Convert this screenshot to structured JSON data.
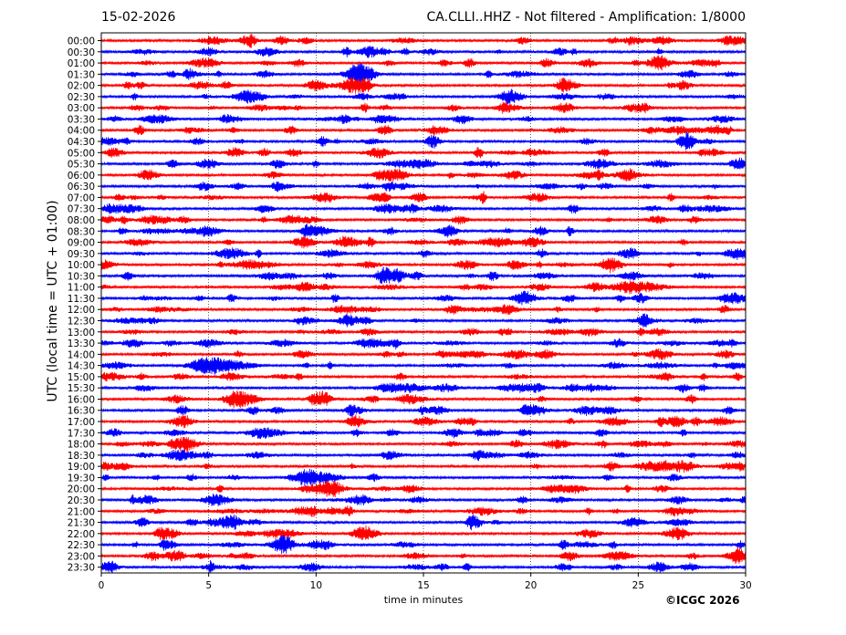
{
  "header": {
    "date": "15-02-2026",
    "title": "CA.CLLI..HHZ - Not filtered - Amplification: 1/8000"
  },
  "footer": {
    "copyright": "©ICGC 2026"
  },
  "colors": {
    "trace_a": "#ff0000",
    "trace_b": "#0000ff",
    "axis": "#000000",
    "grid": "#000000"
  },
  "chart_data": {
    "type": "line",
    "title": "CA.CLLI..HHZ - Not filtered - Amplification: 1/8000",
    "xlabel": "time in minutes",
    "ylabel": "UTC (local time = UTC + 01:00)",
    "xlim": [
      0,
      30
    ],
    "x_ticks": [
      0,
      5,
      10,
      15,
      20,
      25,
      30
    ],
    "grid": "dotted vertical lines at x ticks",
    "trace_color_order": [
      "red",
      "blue"
    ],
    "rows": [
      "00:00",
      "00:30",
      "01:00",
      "01:30",
      "02:00",
      "02:30",
      "03:00",
      "03:30",
      "04:00",
      "04:30",
      "05:00",
      "05:30",
      "06:00",
      "06:30",
      "07:00",
      "07:30",
      "08:00",
      "08:30",
      "09:00",
      "09:30",
      "10:00",
      "10:30",
      "11:00",
      "11:30",
      "12:00",
      "12:30",
      "13:00",
      "13:30",
      "14:00",
      "14:30",
      "15:00",
      "15:30",
      "16:00",
      "16:30",
      "17:00",
      "17:30",
      "18:00",
      "18:30",
      "19:00",
      "19:30",
      "20:00",
      "20:30",
      "21:00",
      "21:30",
      "22:00",
      "22:30",
      "23:00",
      "23:30"
    ]
  }
}
